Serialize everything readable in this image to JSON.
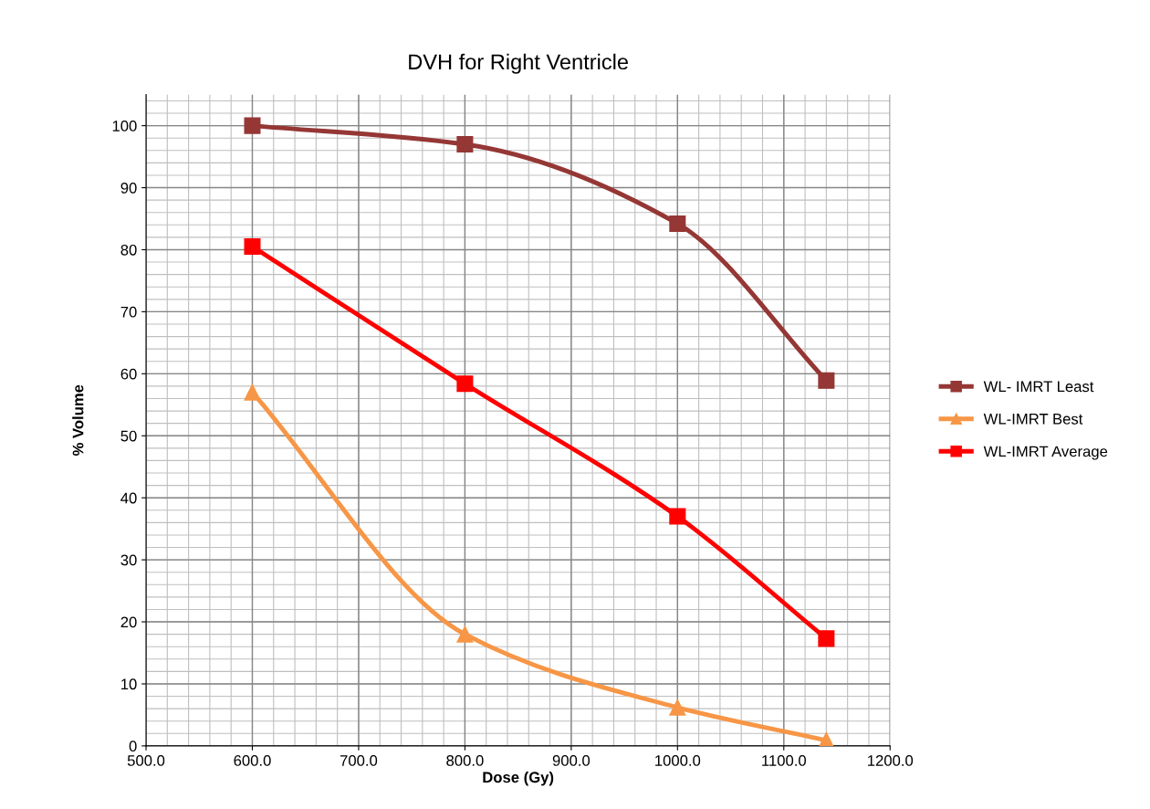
{
  "chart_data": {
    "type": "line",
    "title": "DVH for Right Ventricle",
    "xlabel": "Dose (Gy)",
    "ylabel": "% Volume",
    "x": [
      600,
      800,
      1000,
      1140
    ],
    "series": [
      {
        "name": "WL- IMRT Least",
        "color": "#953735",
        "marker": "square",
        "values": [
          100,
          97,
          84.2,
          58.9
        ]
      },
      {
        "name": "WL-IMRT Best",
        "color": "#f79646",
        "marker": "triangle",
        "values": [
          57,
          18,
          6.2,
          0.9
        ]
      },
      {
        "name": "WL-IMRT Average",
        "color": "#ff0000",
        "marker": "square",
        "values": [
          80.5,
          58.4,
          37.0,
          17.3
        ]
      }
    ],
    "xlim": [
      500,
      1200
    ],
    "xticks": [
      {
        "value": 500,
        "label": "500.0"
      },
      {
        "value": 600,
        "label": "600.0"
      },
      {
        "value": 700,
        "label": "700.0"
      },
      {
        "value": 800,
        "label": "800.0"
      },
      {
        "value": 900,
        "label": "900.0"
      },
      {
        "value": 1000,
        "label": "1000.0"
      },
      {
        "value": 1100,
        "label": "1100.0"
      },
      {
        "value": 1200,
        "label": "1200.0"
      }
    ],
    "ylim": [
      0,
      105
    ],
    "yticks": [
      0,
      10,
      20,
      30,
      40,
      50,
      60,
      70,
      80,
      90,
      100
    ],
    "grid": true,
    "legend": "right"
  }
}
